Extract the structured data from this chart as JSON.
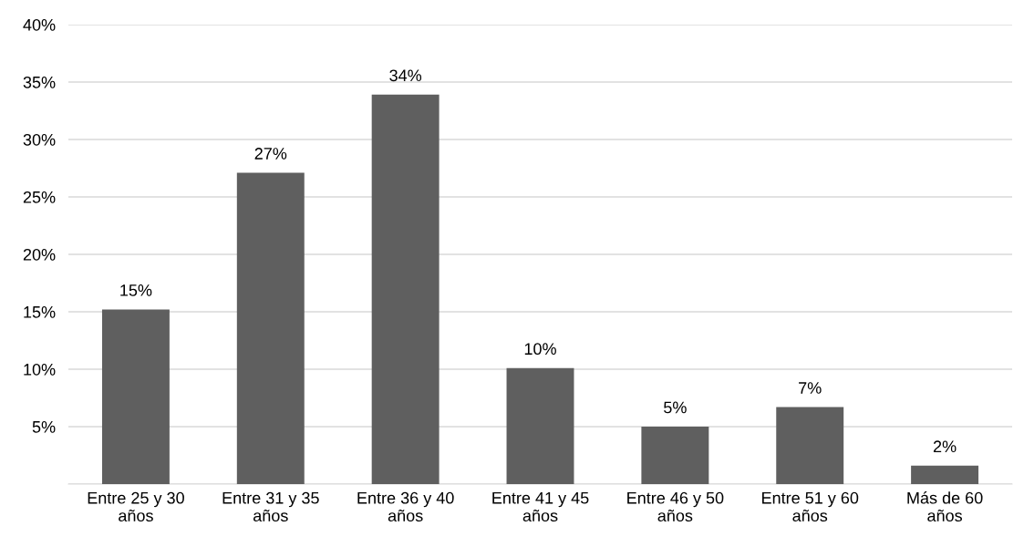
{
  "chart_data": {
    "type": "bar",
    "categories": [
      "Entre 25 y 30 años",
      "Entre 31 y 35 años",
      "Entre 36 y 40 años",
      "Entre 41 y 45 años",
      "Entre 46 y 50 años",
      "Entre 51 y 60 años",
      "Más de 60 años"
    ],
    "values": [
      15.2,
      27.1,
      33.9,
      10.1,
      5.0,
      6.7,
      1.6
    ],
    "value_labels": [
      "15%",
      "27%",
      "34%",
      "10%",
      "5%",
      "7%",
      "2%"
    ],
    "color": "#5f5f5f",
    "ylim": [
      0,
      40
    ],
    "yticks": [
      {
        "value": 0,
        "label": null
      },
      {
        "value": 5,
        "label": "5%"
      },
      {
        "value": 10,
        "label": "10%"
      },
      {
        "value": 15,
        "label": "15%"
      },
      {
        "value": 20,
        "label": "20%"
      },
      {
        "value": 25,
        "label": "25%"
      },
      {
        "value": 30,
        "label": "30%"
      },
      {
        "value": 35,
        "label": "35%"
      },
      {
        "value": 40,
        "label": "40%"
      }
    ],
    "grid": "y",
    "legend": false
  }
}
